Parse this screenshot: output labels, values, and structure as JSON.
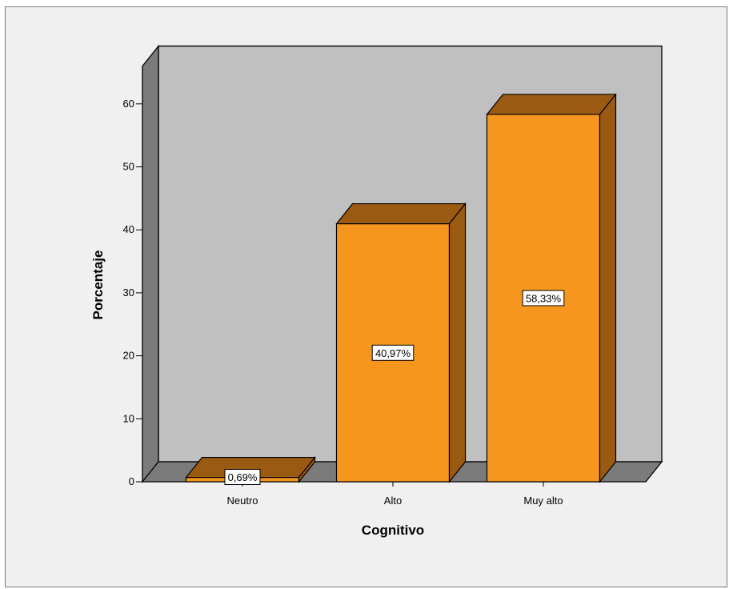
{
  "chart_data": {
    "type": "bar",
    "style": "3d",
    "categories": [
      "Neutro",
      "Alto",
      "Muy alto"
    ],
    "values": [
      0.69,
      40.97,
      58.33
    ],
    "data_labels": [
      "0,69%",
      "40,97%",
      "58,33%"
    ],
    "xlabel": "Cognitivo",
    "ylabel": "Porcentaje",
    "ylim": [
      0,
      60
    ],
    "yticks": [
      "0",
      "10",
      "20",
      "30",
      "40",
      "50",
      "60"
    ],
    "legend": "none",
    "grid": false
  },
  "colors": {
    "frame_background": "#f0f0f0",
    "plot_wall": "#c0c0c0",
    "plot_side_wall": "#7b7b7b",
    "floor": "#7b7b7b",
    "bar_front": "#f7961e",
    "bar_top": "#9b5a12",
    "bar_side": "#9b5a12",
    "label_box": "#ffffff"
  }
}
